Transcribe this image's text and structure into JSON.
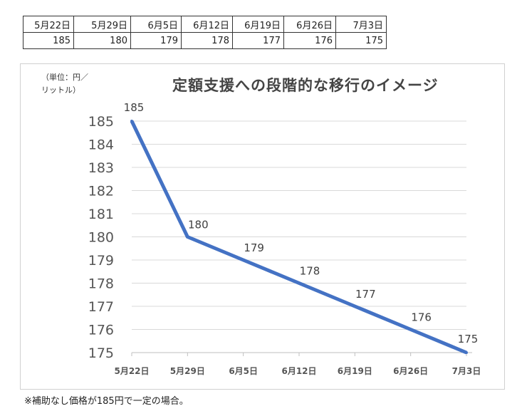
{
  "table": {
    "header": [
      "5月22日",
      "5月29日",
      "6月5日",
      "6月12日",
      "6月19日",
      "6月26日",
      "7月3日"
    ],
    "values": [
      "185",
      "180",
      "179",
      "178",
      "177",
      "176",
      "175"
    ]
  },
  "chart_data": {
    "type": "line",
    "title": "定額支援への段階的な移行のイメージ",
    "unit_label": "（単位：円／\nリットル）",
    "categories": [
      "5月22日",
      "5月29日",
      "6月5日",
      "6月12日",
      "6月19日",
      "6月26日",
      "7月3日"
    ],
    "series": [
      {
        "values": [
          185,
          180,
          179,
          178,
          177,
          176,
          175
        ],
        "color": "#4472C4"
      }
    ],
    "ylim": [
      175,
      185
    ],
    "yticks": [
      175,
      176,
      177,
      178,
      179,
      180,
      181,
      182,
      183,
      184,
      185
    ],
    "grid": true,
    "data_labels": true
  },
  "footnote": "※補助なし価格が185円で一定の場合。"
}
